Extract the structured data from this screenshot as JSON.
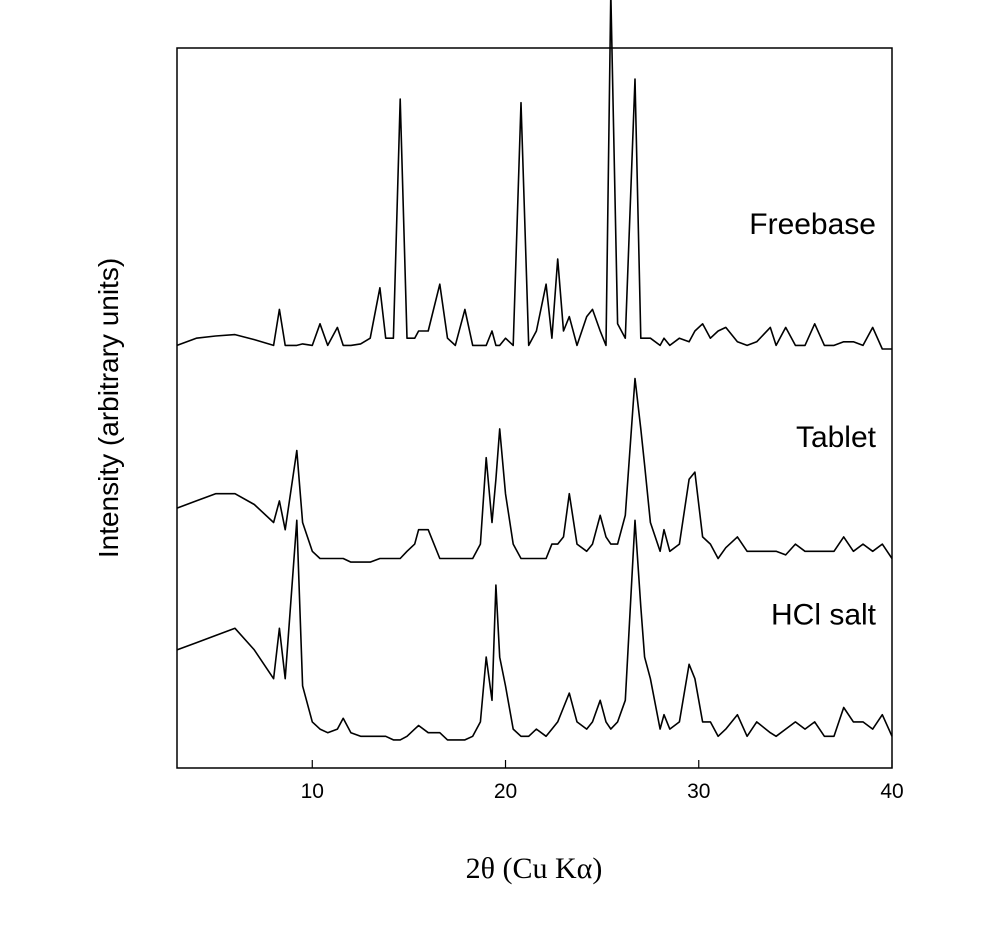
{
  "chart_data": {
    "type": "line",
    "title": "",
    "xlabel": "2θ (Cu Kα)",
    "ylabel": "Intensity (arbitrary units)",
    "xlim": [
      3,
      40
    ],
    "ylim": [
      0,
      1
    ],
    "xticks": [
      10,
      20,
      30,
      40
    ],
    "y_ticks_labeled": false,
    "grid": false,
    "legend": "none (inline series labels)",
    "x": [
      3,
      4,
      5,
      6,
      7,
      8,
      8.3,
      8.6,
      9.2,
      9.5,
      10,
      10.4,
      10.8,
      11.3,
      11.6,
      12,
      12.5,
      13,
      13.5,
      13.8,
      14.2,
      14.55,
      14.9,
      15.3,
      15.5,
      16,
      16.6,
      17,
      17.4,
      17.9,
      18.3,
      18.7,
      19,
      19.3,
      19.5,
      19.7,
      20,
      20.4,
      20.8,
      21.2,
      21.6,
      22.1,
      22.4,
      22.7,
      23,
      23.3,
      23.7,
      24.2,
      24.5,
      24.9,
      25.2,
      25.45,
      25.8,
      26.2,
      26.7,
      27,
      27.2,
      27.5,
      28,
      28.2,
      28.5,
      29,
      29.5,
      29.8,
      30.2,
      30.6,
      31,
      31.4,
      32,
      32.5,
      33,
      33.7,
      34,
      34.5,
      35,
      35.5,
      36,
      36.5,
      37,
      37.5,
      38,
      38.5,
      39,
      39.5,
      40
    ],
    "series": [
      {
        "name": "Freebase",
        "offset": 0.577,
        "values": [
          0.01,
          0.02,
          0.023,
          0.025,
          0.018,
          0.01,
          0.06,
          0.01,
          0.01,
          0.012,
          0.01,
          0.04,
          0.01,
          0.035,
          0.01,
          0.01,
          0.012,
          0.02,
          0.09,
          0.02,
          0.02,
          0.352,
          0.02,
          0.02,
          0.03,
          0.03,
          0.095,
          0.02,
          0.01,
          0.06,
          0.01,
          0.01,
          0.01,
          0.03,
          0.01,
          0.01,
          0.02,
          0.01,
          0.347,
          0.01,
          0.03,
          0.095,
          0.02,
          0.13,
          0.03,
          0.05,
          0.01,
          0.05,
          0.06,
          0.03,
          0.01,
          0.5,
          0.04,
          0.02,
          0.38,
          0.02,
          0.02,
          0.02,
          0.01,
          0.02,
          0.01,
          0.02,
          0.015,
          0.03,
          0.04,
          0.02,
          0.03,
          0.035,
          0.015,
          0.01,
          0.015,
          0.035,
          0.01,
          0.035,
          0.01,
          0.01,
          0.04,
          0.01,
          0.01,
          0.015,
          0.015,
          0.01,
          0.035,
          0.005,
          0.005
        ]
      },
      {
        "name": "Tablet",
        "offset": 0.281,
        "values": [
          0.08,
          0.09,
          0.1,
          0.1,
          0.085,
          0.06,
          0.09,
          0.05,
          0.16,
          0.06,
          0.02,
          0.01,
          0.01,
          0.01,
          0.01,
          0.005,
          0.005,
          0.005,
          0.01,
          0.01,
          0.01,
          0.01,
          0.02,
          0.03,
          0.05,
          0.05,
          0.01,
          0.01,
          0.01,
          0.01,
          0.01,
          0.03,
          0.15,
          0.06,
          0.12,
          0.19,
          0.1,
          0.03,
          0.01,
          0.01,
          0.01,
          0.01,
          0.03,
          0.03,
          0.04,
          0.1,
          0.03,
          0.02,
          0.03,
          0.07,
          0.04,
          0.03,
          0.03,
          0.07,
          0.26,
          0.19,
          0.14,
          0.06,
          0.02,
          0.05,
          0.02,
          0.03,
          0.12,
          0.13,
          0.04,
          0.03,
          0.01,
          0.025,
          0.04,
          0.02,
          0.02,
          0.02,
          0.02,
          0.015,
          0.03,
          0.02,
          0.02,
          0.02,
          0.02,
          0.04,
          0.02,
          0.03,
          0.02,
          0.03,
          0.01
        ]
      },
      {
        "name": "HCl salt",
        "offset": 0.034,
        "values": [
          0.13,
          0.14,
          0.15,
          0.16,
          0.13,
          0.09,
          0.16,
          0.09,
          0.31,
          0.08,
          0.03,
          0.02,
          0.015,
          0.02,
          0.035,
          0.015,
          0.01,
          0.01,
          0.01,
          0.01,
          0.005,
          0.005,
          0.01,
          0.02,
          0.025,
          0.015,
          0.015,
          0.005,
          0.005,
          0.005,
          0.01,
          0.03,
          0.12,
          0.06,
          0.22,
          0.12,
          0.08,
          0.02,
          0.01,
          0.01,
          0.02,
          0.01,
          0.02,
          0.03,
          0.05,
          0.07,
          0.03,
          0.02,
          0.03,
          0.06,
          0.03,
          0.02,
          0.03,
          0.06,
          0.31,
          0.19,
          0.12,
          0.09,
          0.02,
          0.04,
          0.02,
          0.03,
          0.11,
          0.09,
          0.03,
          0.03,
          0.01,
          0.02,
          0.04,
          0.01,
          0.03,
          0.015,
          0.01,
          0.02,
          0.03,
          0.02,
          0.03,
          0.01,
          0.01,
          0.05,
          0.03,
          0.03,
          0.02,
          0.04,
          0.01
        ]
      }
    ],
    "line_color": "#000000"
  }
}
